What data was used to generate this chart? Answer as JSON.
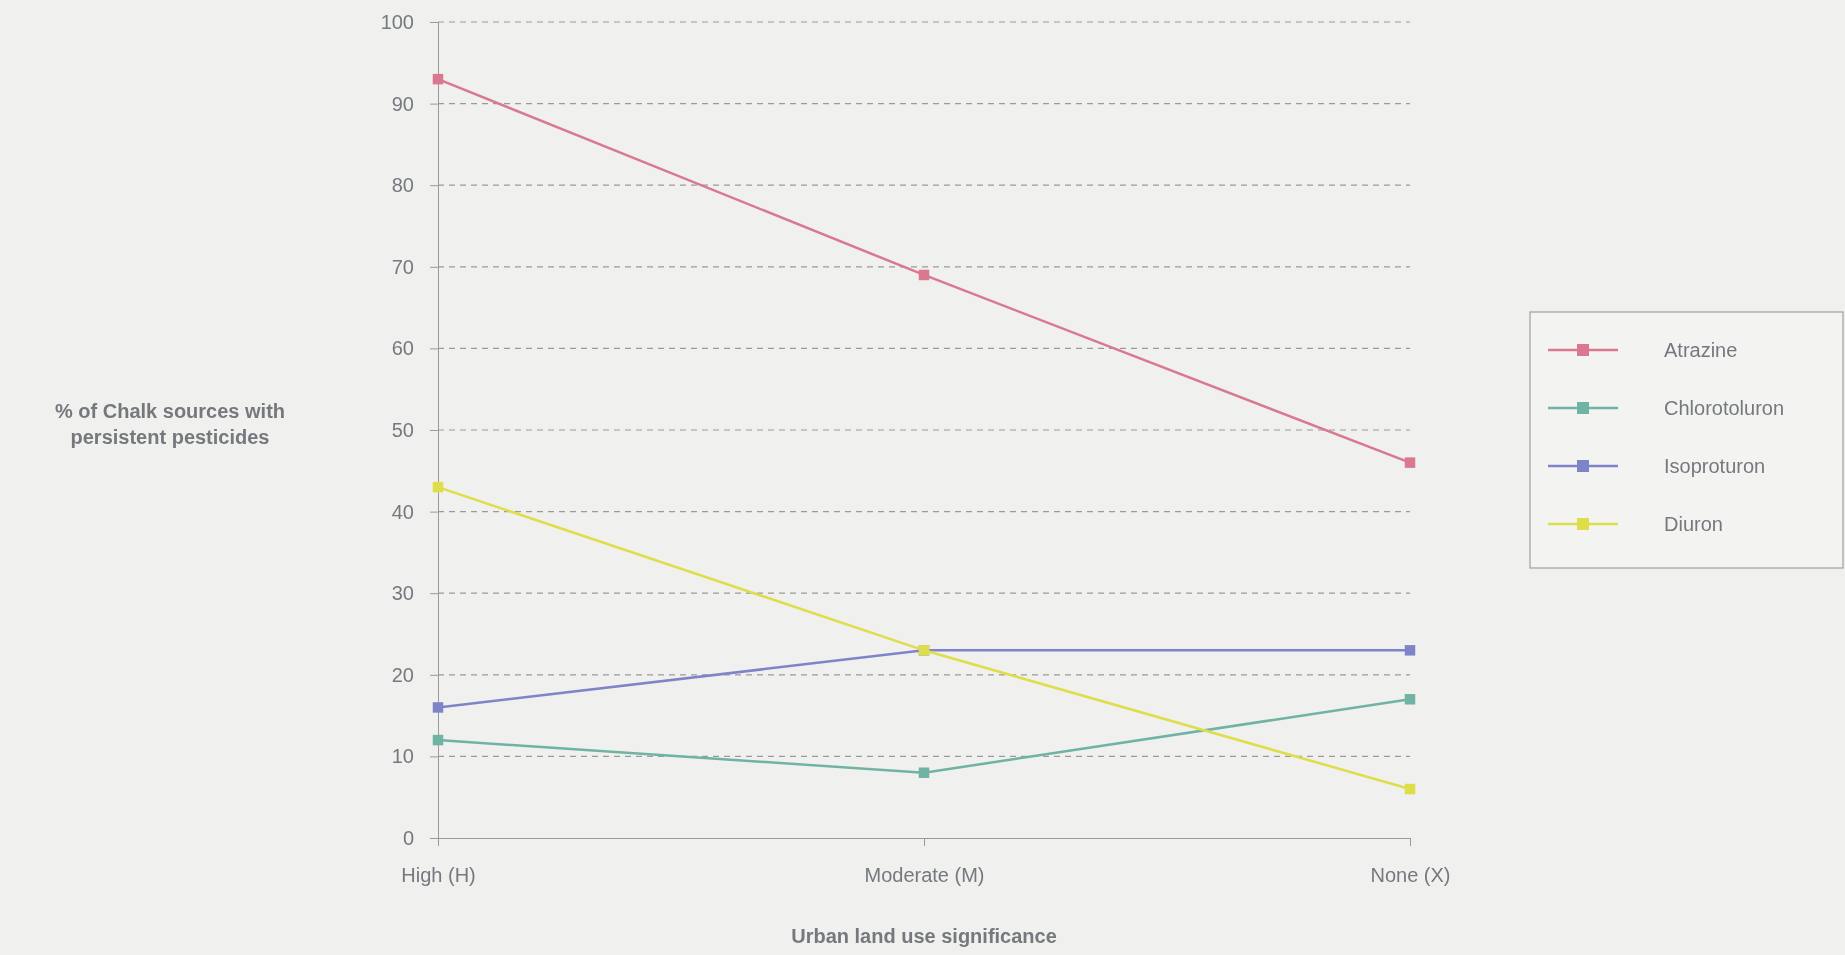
{
  "chart_data": {
    "type": "line",
    "xlabel": "Urban land use significance",
    "ylabel": "% of Chalk sources with persistent pesticides",
    "categories": [
      "High (H)",
      "Moderate (M)",
      "None (X)"
    ],
    "series": [
      {
        "name": "Atrazine",
        "color": "#d9788f",
        "values": [
          93,
          69,
          46
        ]
      },
      {
        "name": "Chlorotoluron",
        "color": "#6fb3a3",
        "values": [
          12,
          8,
          17
        ]
      },
      {
        "name": "Isoproturon",
        "color": "#7f84c8",
        "values": [
          16,
          23,
          23
        ]
      },
      {
        "name": "Diuron",
        "color": "#dede4a",
        "values": [
          43,
          23,
          6
        ]
      }
    ],
    "ylim": [
      0,
      100
    ],
    "yticks": [
      0,
      10,
      20,
      30,
      40,
      50,
      60,
      70,
      80,
      90,
      100
    ],
    "grid": "y",
    "legend": "right",
    "marker": "square",
    "line_style": "solid"
  }
}
